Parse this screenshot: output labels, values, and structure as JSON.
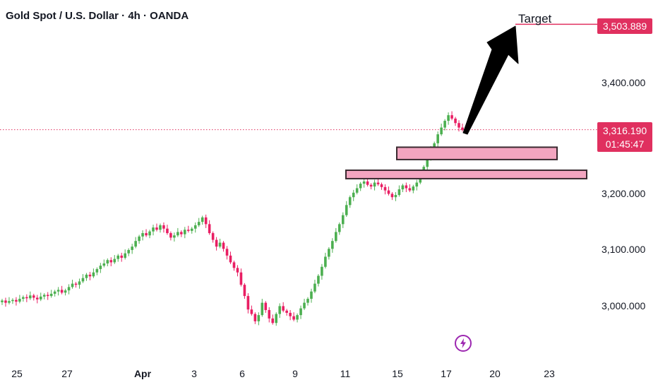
{
  "header": {
    "title": "Gold Spot / U.S. Dollar · 4h · OANDA"
  },
  "annotations": {
    "target_label": "Target"
  },
  "current": {
    "price": "3,316.190",
    "countdown": "01:45:47"
  },
  "target": {
    "price": "3,503.889"
  },
  "icons": {
    "flash": "flash-icon"
  },
  "colors": {
    "up": "#4caf50",
    "down": "#e91e63",
    "accent": "#e0305f",
    "zone_fill": "#f3a5c0",
    "zone_border": "#3a2a30",
    "arrow": "#000000",
    "flash_ring": "#9c27b0",
    "current_line": "#e0305f"
  },
  "chart_data": {
    "type": "candlestick",
    "title": "Gold Spot / U.S. Dollar · 4h · OANDA",
    "y_tick_labels": [
      "3,400.000",
      "3,200.000",
      "3,100.000",
      "3,000.000"
    ],
    "y_ticks": [
      3400,
      3200,
      3100,
      3000
    ],
    "x_tick_labels": [
      "25",
      "27",
      "Apr",
      "3",
      "6",
      "9",
      "11",
      "15",
      "17",
      "20",
      "23"
    ],
    "current_price": 3316.19,
    "target_price": 3503.889,
    "zones": [
      {
        "name": "upper-demand-zone",
        "low": 3263,
        "high": 3285
      },
      {
        "name": "lower-demand-zone",
        "low": 3229,
        "high": 3244
      }
    ],
    "series": [
      {
        "ohlc_close": [
          3012,
          3008,
          3011,
          3013,
          3010,
          3015,
          3018,
          3016,
          3021,
          3017,
          3014,
          3019,
          3022,
          3020,
          3024,
          3028,
          3031,
          3026,
          3030,
          3036,
          3042,
          3040,
          3046,
          3052,
          3058,
          3055,
          3062,
          3068,
          3074,
          3078,
          3084,
          3080,
          3086,
          3092,
          3088,
          3096,
          3102,
          3108,
          3118,
          3126,
          3132,
          3128,
          3135,
          3142,
          3138,
          3146,
          3140,
          3132,
          3124,
          3128,
          3134,
          3130,
          3138,
          3136,
          3140,
          3146,
          3152,
          3160,
          3148,
          3132,
          3120,
          3108,
          3115,
          3104,
          3092,
          3080,
          3070,
          3062,
          3040,
          3020,
          2996,
          2988,
          2975,
          2986,
          3008,
          2995,
          2980,
          2972,
          2988,
          3002,
          2994,
          2990,
          2984,
          2978,
          2986,
          2998,
          3008,
          3015,
          3028,
          3042,
          3056,
          3072,
          3090,
          3104,
          3118,
          3134,
          3148,
          3164,
          3182,
          3196,
          3204,
          3212,
          3220,
          3224,
          3218,
          3215,
          3222,
          3219,
          3214,
          3208,
          3202,
          3196,
          3200,
          3210,
          3217,
          3212,
          3208,
          3215,
          3222,
          3236,
          3250,
          3264,
          3280,
          3292,
          3308,
          3320,
          3332,
          3342,
          3336,
          3328,
          3320,
          3316
        ]
      }
    ]
  }
}
